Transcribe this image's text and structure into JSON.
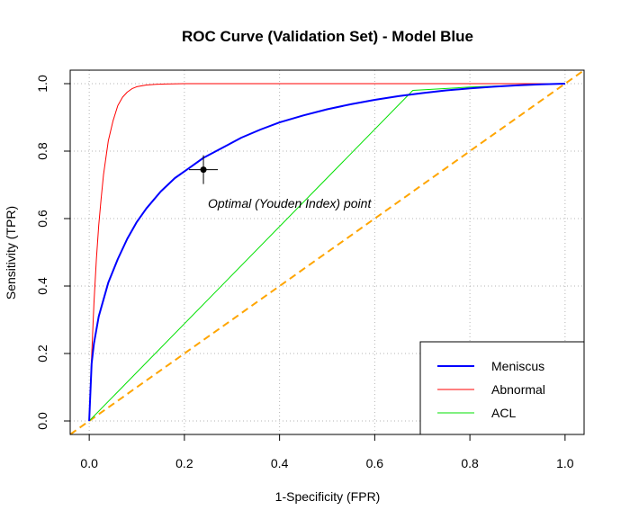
{
  "chart_data": {
    "type": "line",
    "title": "ROC Curve (Validation Set) - Model Blue",
    "xlabel": "1-Specificity (FPR)",
    "ylabel": "Sensitivity (TPR)",
    "xlim": [
      -0.04,
      1.04
    ],
    "ylim": [
      -0.04,
      1.04
    ],
    "x_ticks": [
      "0.0",
      "0.2",
      "0.4",
      "0.6",
      "0.8",
      "1.0"
    ],
    "y_ticks": [
      "0.0",
      "0.2",
      "0.4",
      "0.6",
      "0.8",
      "1.0"
    ],
    "grid": true,
    "legend_position": "bottom-right",
    "series": [
      {
        "name": "Meniscus",
        "color": "#0000ff",
        "line_style": "solid",
        "x": [
          0,
          0.005,
          0.01,
          0.02,
          0.04,
          0.06,
          0.08,
          0.1,
          0.12,
          0.15,
          0.18,
          0.21,
          0.24,
          0.28,
          0.32,
          0.36,
          0.4,
          0.45,
          0.5,
          0.55,
          0.6,
          0.65,
          0.7,
          0.75,
          0.8,
          0.85,
          0.9,
          0.95,
          1.0
        ],
        "y": [
          0,
          0.17,
          0.23,
          0.31,
          0.41,
          0.48,
          0.54,
          0.59,
          0.63,
          0.68,
          0.72,
          0.75,
          0.78,
          0.81,
          0.84,
          0.864,
          0.885,
          0.906,
          0.924,
          0.939,
          0.952,
          0.963,
          0.972,
          0.98,
          0.986,
          0.991,
          0.995,
          0.998,
          1.0
        ]
      },
      {
        "name": "Abnormal",
        "color": "#ff0000",
        "line_style": "solid",
        "x": [
          0,
          0.005,
          0.01,
          0.015,
          0.02,
          0.025,
          0.03,
          0.04,
          0.05,
          0.06,
          0.07,
          0.08,
          0.09,
          0.1,
          0.12,
          0.14,
          0.16,
          0.2,
          0.3,
          0.5,
          0.7,
          1.0
        ],
        "y": [
          0,
          0.19,
          0.35,
          0.48,
          0.58,
          0.66,
          0.73,
          0.83,
          0.89,
          0.935,
          0.96,
          0.975,
          0.985,
          0.991,
          0.996,
          0.998,
          0.999,
          1.0,
          1.0,
          1.0,
          1.0,
          1.0
        ]
      },
      {
        "name": "ACL",
        "color": "#00e000",
        "line_style": "solid",
        "x": [
          0,
          0.68,
          0.8,
          1.0
        ],
        "y": [
          0,
          0.98,
          0.99,
          1.0
        ]
      },
      {
        "name": "",
        "color": "#ffa500",
        "line_style": "dashed",
        "x": [
          -0.04,
          1.04
        ],
        "y": [
          -0.04,
          1.04
        ]
      }
    ],
    "legend": [
      "Meniscus",
      "Abnormal",
      "ACL"
    ],
    "optimal_point": {
      "x": 0.24,
      "y": 0.745
    },
    "annotation": "Optimal (Youden Index) point"
  }
}
